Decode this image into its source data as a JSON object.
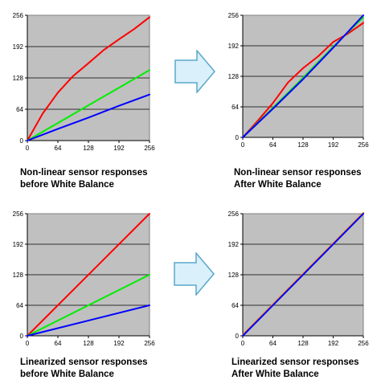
{
  "colors": {
    "plot_bg": "#c0c0c0",
    "red": "#ff0000",
    "green": "#00ee00",
    "blue": "#0000ff",
    "orange": "#ff8c00",
    "arrow_fill": "#daf0fb",
    "arrow_stroke": "#5aa7c9"
  },
  "captions": {
    "top_left": [
      "Non-linear sensor responses",
      "before White Balance"
    ],
    "top_right": [
      "Non-linear sensor responses",
      "After White Balance"
    ],
    "bottom_left": [
      "Linearized sensor responses",
      "before White Balance"
    ],
    "bottom_right": [
      "Linearized sensor responses",
      "After White Balance"
    ]
  },
  "chart_data": [
    {
      "type": "line",
      "xlim": [
        0,
        256
      ],
      "ylim": [
        0,
        256
      ],
      "xticks": [
        0,
        64,
        128,
        192,
        256
      ],
      "yticks": [
        0,
        64,
        128,
        192,
        256
      ],
      "grid": true,
      "series": [
        {
          "color": "red",
          "x": [
            0,
            32,
            64,
            96,
            128,
            160,
            192,
            224,
            256
          ],
          "y": [
            0,
            55,
            98,
            132,
            158,
            185,
            207,
            228,
            252
          ]
        },
        {
          "color": "green",
          "x": [
            0,
            64,
            128,
            192,
            256
          ],
          "y": [
            0,
            36,
            72,
            108,
            144
          ]
        },
        {
          "color": "blue",
          "x": [
            0,
            64,
            128,
            192,
            256
          ],
          "y": [
            0,
            24,
            47,
            71,
            94
          ]
        }
      ]
    },
    {
      "type": "line",
      "xlim": [
        0,
        256
      ],
      "ylim": [
        0,
        256
      ],
      "xticks": [
        0,
        64,
        128,
        192,
        256
      ],
      "yticks": [
        0,
        64,
        128,
        192,
        256
      ],
      "grid": true,
      "series": [
        {
          "color": "red",
          "x": [
            0,
            32,
            64,
            96,
            128,
            160,
            192,
            224,
            256
          ],
          "y": [
            0,
            35,
            72,
            115,
            145,
            170,
            200,
            218,
            240
          ]
        },
        {
          "color": "green",
          "x": [
            0,
            64,
            128,
            192,
            256
          ],
          "y": [
            0,
            62,
            125,
            190,
            252
          ]
        },
        {
          "color": "blue",
          "x": [
            0,
            64,
            128,
            192,
            256
          ],
          "y": [
            0,
            60,
            122,
            188,
            256
          ]
        }
      ]
    },
    {
      "type": "line",
      "xlim": [
        0,
        256
      ],
      "ylim": [
        0,
        256
      ],
      "xticks": [
        0,
        64,
        128,
        192,
        256
      ],
      "yticks": [
        0,
        64,
        128,
        192,
        256
      ],
      "grid": true,
      "series": [
        {
          "color": "red",
          "x": [
            0,
            256
          ],
          "y": [
            0,
            256
          ]
        },
        {
          "color": "green",
          "x": [
            0,
            256
          ],
          "y": [
            0,
            128
          ]
        },
        {
          "color": "blue",
          "x": [
            0,
            256
          ],
          "y": [
            0,
            64
          ]
        }
      ]
    },
    {
      "type": "line",
      "xlim": [
        0,
        256
      ],
      "ylim": [
        0,
        256
      ],
      "xticks": [
        0,
        64,
        128,
        192,
        256
      ],
      "yticks": [
        0,
        64,
        128,
        192,
        256
      ],
      "grid": true,
      "series": [
        {
          "color": "orange",
          "x": [
            0,
            256
          ],
          "y": [
            2,
            258
          ]
        },
        {
          "color": "blue",
          "x": [
            0,
            256
          ],
          "y": [
            0,
            256
          ]
        }
      ]
    }
  ]
}
